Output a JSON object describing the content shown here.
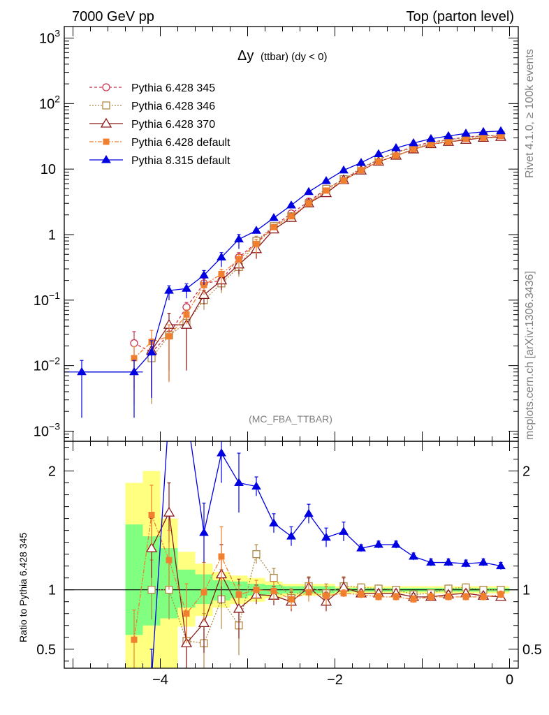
{
  "header": {
    "left": "7000 GeV pp",
    "right": "Top (parton level)"
  },
  "side_labels": {
    "rivet": "Rivet 4.1.0, ≥ 100k events",
    "mcplots": "mcplots.cern.ch [arXiv:1306.3436]"
  },
  "chart_data": [
    {
      "type": "line",
      "title_main": "Δy",
      "title_sub": "(ttbar) (dy < 0)",
      "analysis_label": "(MC_FBA_TTBAR)",
      "yscale": "log",
      "xlim": [
        -5.1,
        0.1
      ],
      "ylim": [
        0.0007,
        1500
      ],
      "y_ticks": [
        {
          "v": 0.001,
          "base": "10",
          "exp": "−3"
        },
        {
          "v": 0.01,
          "base": "10",
          "exp": "−2"
        },
        {
          "v": 0.1,
          "base": "10",
          "exp": "−1"
        },
        {
          "v": 1,
          "base": "1",
          "exp": ""
        },
        {
          "v": 10,
          "base": "10",
          "exp": ""
        },
        {
          "v": 100,
          "base": "10",
          "exp": "2"
        },
        {
          "v": 1000,
          "base": "10",
          "exp": "3"
        }
      ],
      "legend_position": "top-left",
      "x": [
        -4.9,
        -4.3,
        -4.1,
        -3.9,
        -3.7,
        -3.5,
        -3.3,
        -3.1,
        -2.9,
        -2.7,
        -2.5,
        -2.3,
        -2.1,
        -1.9,
        -1.7,
        -1.5,
        -1.3,
        -1.1,
        -0.9,
        -0.7,
        -0.5,
        -0.3,
        -0.1
      ],
      "series": [
        {
          "name": "Pythia 6.428 345",
          "color": "#c83250",
          "dash": "4,3",
          "marker": "circle-open",
          "values": [
            null,
            0.022,
            0.016,
            0.03,
            0.078,
            0.18,
            0.2,
            0.45,
            0.75,
            1.35,
            2.1,
            3.2,
            5.0,
            7.0,
            10.0,
            14.0,
            18.0,
            22.0,
            26.0,
            28.0,
            31.0,
            32.0,
            33.0
          ]
        },
        {
          "name": "Pythia 6.428 346",
          "color": "#b08a48",
          "dash": "2,2",
          "marker": "square-open",
          "values": [
            null,
            null,
            0.013,
            0.029,
            0.045,
            0.1,
            0.18,
            0.32,
            0.8,
            1.35,
            1.9,
            3.0,
            5.0,
            7.0,
            10.5,
            14.0,
            18.0,
            21.0,
            25.0,
            28.0,
            30.0,
            32.0,
            33.0
          ]
        },
        {
          "name": "Pythia 6.428 370",
          "color": "#8b1a1a",
          "dash": "",
          "marker": "triangle-open",
          "values": [
            null,
            null,
            0.017,
            0.042,
            0.042,
            0.12,
            0.2,
            0.35,
            0.6,
            1.2,
            1.8,
            3.0,
            4.3,
            6.8,
            9.5,
            13.0,
            16.0,
            20.0,
            24.0,
            26.0,
            28.0,
            30.0,
            31.0
          ]
        },
        {
          "name": "Pythia 6.428 default",
          "color": "#f08030",
          "dash": "6,2,2,2",
          "marker": "square-filled",
          "values": [
            null,
            0.013,
            0.023,
            0.028,
            0.06,
            0.17,
            0.25,
            0.42,
            0.72,
            1.3,
            1.9,
            3.0,
            4.7,
            6.7,
            9.6,
            13.0,
            16.0,
            20.0,
            24.0,
            26.0,
            29.0,
            30.0,
            32.0
          ]
        },
        {
          "name": "Pythia 8.315 default",
          "color": "#0000e0",
          "dash": "",
          "marker": "triangle-filled",
          "values": [
            0.008,
            0.008,
            0.016,
            0.14,
            0.15,
            0.24,
            0.45,
            0.85,
            1.15,
            1.8,
            2.8,
            4.5,
            6.6,
            9.6,
            12.5,
            17.0,
            21.0,
            25.0,
            29.0,
            32.0,
            35.0,
            37.0,
            38.0
          ]
        }
      ]
    },
    {
      "type": "line",
      "ylabel": "Ratio to Pythia 6.428 345",
      "xlim": [
        -5.1,
        0.1
      ],
      "ylim": [
        0.34,
        2.25
      ],
      "y_ticks": [
        0.5,
        1,
        2
      ],
      "x_ticks": [
        {
          "v": -4,
          "label": "−4"
        },
        {
          "v": -2,
          "label": "−2"
        },
        {
          "v": 0,
          "label": "0"
        }
      ],
      "reference_line": 1,
      "bands": [
        {
          "x0": -4.4,
          "x1": -4.2,
          "green": [
            0.62,
            1.55
          ],
          "yellow": [
            0.2,
            1.9
          ]
        },
        {
          "x0": -4.2,
          "x1": -4.0,
          "green": [
            0.7,
            1.45
          ],
          "yellow": [
            0.2,
            2.0
          ]
        },
        {
          "x0": -4.0,
          "x1": -3.8,
          "green": [
            0.76,
            1.35
          ],
          "yellow": [
            0.3,
            1.6
          ]
        },
        {
          "x0": -3.8,
          "x1": -3.6,
          "green": [
            0.85,
            1.17
          ],
          "yellow": [
            0.69,
            1.32
          ]
        },
        {
          "x0": -3.6,
          "x1": -3.4,
          "green": [
            0.88,
            1.13
          ],
          "yellow": [
            0.78,
            1.22
          ]
        },
        {
          "x0": -3.4,
          "x1": -3.2,
          "green": [
            0.91,
            1.08
          ],
          "yellow": [
            0.85,
            1.15
          ]
        },
        {
          "x0": -3.2,
          "x1": -3.0,
          "green": [
            0.93,
            1.07
          ],
          "yellow": [
            0.88,
            1.12
          ]
        },
        {
          "x0": -3.0,
          "x1": -2.8,
          "green": [
            0.95,
            1.05
          ],
          "yellow": [
            0.9,
            1.1
          ]
        },
        {
          "x0": -2.8,
          "x1": -2.6,
          "green": [
            0.96,
            1.04
          ],
          "yellow": [
            0.93,
            1.07
          ]
        },
        {
          "x0": -2.6,
          "x1": -2.0,
          "green": [
            0.97,
            1.03
          ],
          "yellow": [
            0.95,
            1.05
          ]
        },
        {
          "x0": -2.0,
          "x1": 0.0,
          "green": [
            0.985,
            1.015
          ],
          "yellow": [
            0.97,
            1.03
          ]
        }
      ],
      "x": [
        -4.3,
        -4.1,
        -3.9,
        -3.7,
        -3.5,
        -3.3,
        -3.1,
        -2.9,
        -2.7,
        -2.5,
        -2.3,
        -2.1,
        -1.9,
        -1.7,
        -1.5,
        -1.3,
        -1.1,
        -0.9,
        -0.7,
        -0.5,
        -0.3,
        -0.1
      ],
      "series": [
        {
          "name": "Pythia 6.428 346",
          "values": [
            null,
            1.0,
            1.0,
            0.57,
            0.55,
            0.92,
            0.7,
            1.3,
            1.1,
            0.93,
            1.03,
            0.97,
            1.03,
            1.02,
            1.01,
            1.0,
            0.96,
            0.97,
            1.01,
            1.02,
            1.0,
            1.0
          ]
        },
        {
          "name": "Pythia 6.428 370",
          "values": [
            null,
            1.35,
            1.65,
            0.55,
            0.72,
            1.13,
            0.84,
            0.96,
            0.95,
            0.9,
            1.02,
            0.9,
            1.02,
            0.97,
            0.97,
            0.97,
            0.94,
            0.94,
            0.96,
            0.97,
            0.95,
            0.94
          ]
        },
        {
          "name": "Pythia 6.428 default",
          "values": [
            0.58,
            1.63,
            1.25,
            0.8,
            0.98,
            1.28,
            0.96,
            1.0,
            0.99,
            0.92,
            0.98,
            0.95,
            0.97,
            0.96,
            0.94,
            0.94,
            0.92,
            0.94,
            0.94,
            0.94,
            0.94,
            0.96
          ]
        },
        {
          "name": "Pythia 8.315 default",
          "values": [
            null,
            0.25,
            2.5,
            2.5,
            1.48,
            2.15,
            1.9,
            1.87,
            1.56,
            1.45,
            1.64,
            1.44,
            1.49,
            1.35,
            1.38,
            1.38,
            1.28,
            1.23,
            1.23,
            1.22,
            1.23,
            1.2
          ]
        }
      ]
    }
  ]
}
